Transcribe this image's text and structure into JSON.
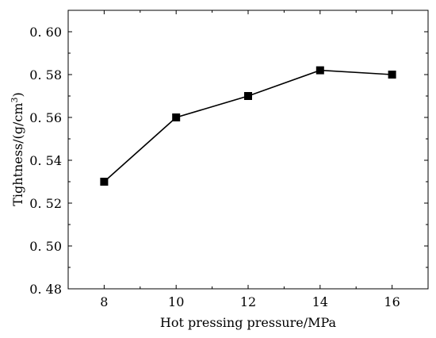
{
  "chart_data": {
    "type": "line",
    "title": "",
    "xlabel": "Hot pressing pressure/MPa",
    "ylabel_main": "Tightness/(g/cm",
    "ylabel_sup": "3",
    "ylabel_end": ")",
    "x": [
      8,
      10,
      12,
      14,
      16
    ],
    "x_tick_labels": [
      "8",
      "10",
      "12",
      "14",
      "16"
    ],
    "xlim": [
      7,
      17
    ],
    "ylim": [
      0.48,
      0.61
    ],
    "y_ticks": [
      0.48,
      0.5,
      0.52,
      0.54,
      0.56,
      0.58,
      0.6
    ],
    "y_tick_labels": [
      "0. 48",
      "0. 50",
      "0. 52",
      "0. 54",
      "0. 56",
      "0. 58",
      "0. 60"
    ],
    "series": [
      {
        "values": [
          0.53,
          0.56,
          0.57,
          0.582,
          0.58
        ],
        "marker": "square",
        "color": "#000000"
      }
    ],
    "grid": false,
    "legend": "none"
  }
}
